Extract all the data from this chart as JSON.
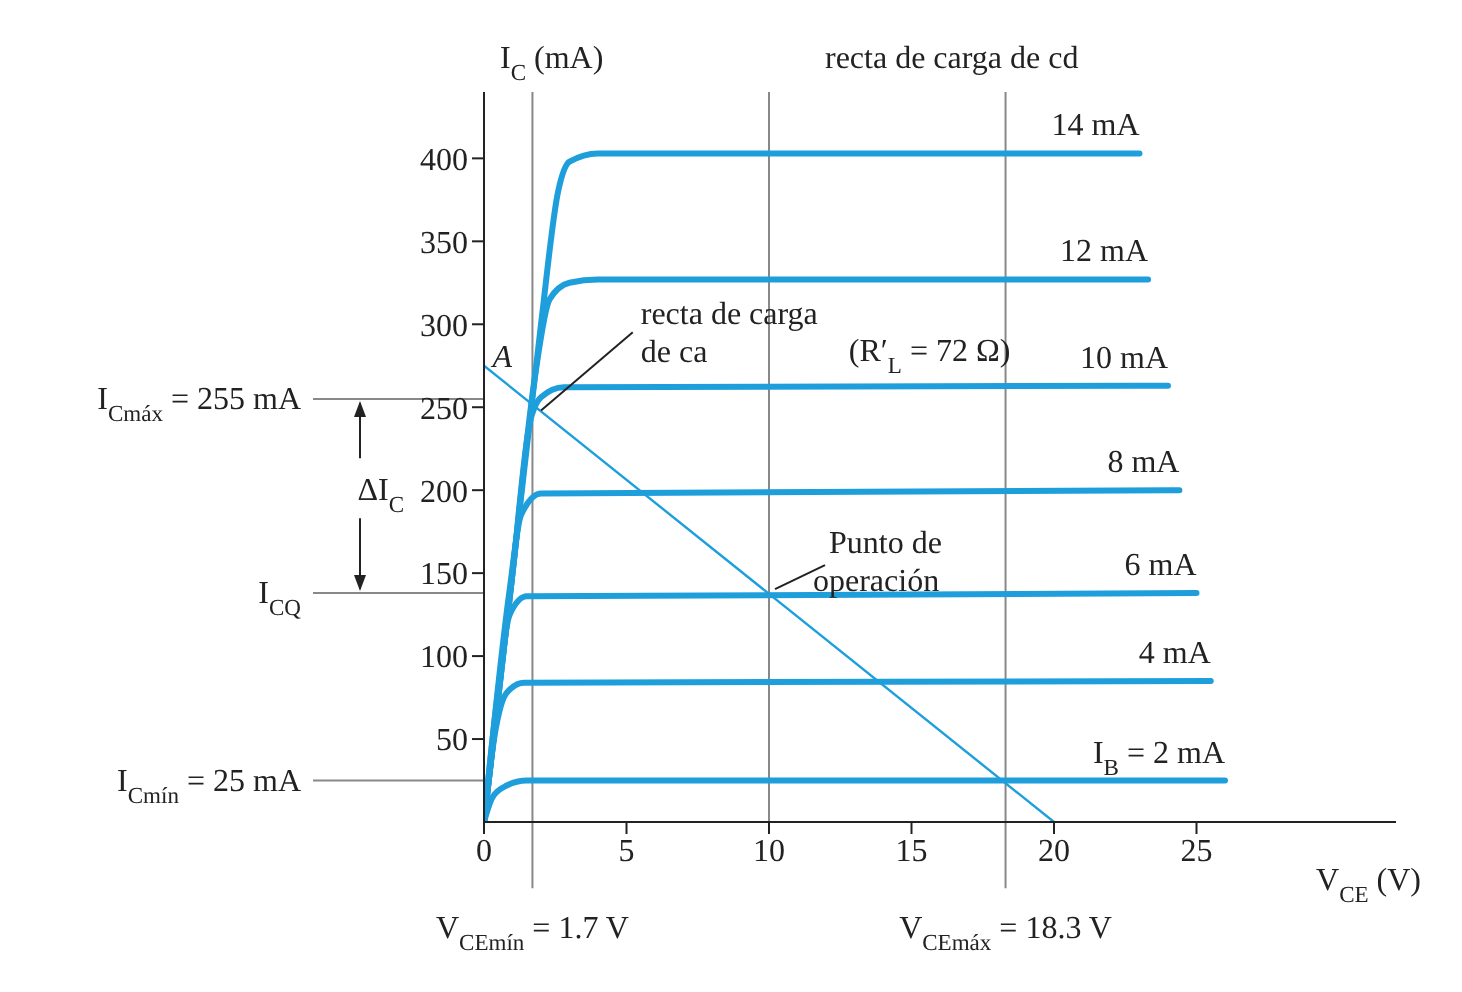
{
  "chart_data": {
    "type": "line",
    "xlabel": "V$_{CE}$ (V)",
    "ylabel": "I$_{C}$ (mA)",
    "xlim": [
      0,
      32
    ],
    "ylim": [
      0,
      440
    ],
    "xticks": [
      0,
      5,
      10,
      15,
      20,
      25
    ],
    "yticks": [
      50,
      100,
      150,
      200,
      250,
      300,
      350,
      400
    ],
    "marker": "none",
    "series": [
      {
        "name": "14 mA",
        "color": "#1e9fdc",
        "x": [
          0,
          1,
          2,
          2.6,
          3,
          4,
          23
        ],
        "values": [
          0,
          150,
          300,
          380,
          398,
          403,
          403
        ]
      },
      {
        "name": "12 mA",
        "color": "#1e9fdc",
        "x": [
          0,
          1,
          1.8,
          2.3,
          3,
          4,
          23.3
        ],
        "values": [
          0,
          150,
          270,
          315,
          325,
          327,
          327
        ]
      },
      {
        "name": "10 mA",
        "color": "#1e9fdc",
        "x": [
          0,
          1,
          1.6,
          2,
          2.8,
          24
        ],
        "values": [
          0,
          150,
          240,
          256,
          262,
          263
        ]
      },
      {
        "name": "8 mA",
        "color": "#1e9fdc",
        "x": [
          0,
          0.9,
          1.3,
          2,
          24.4
        ],
        "values": [
          0,
          140,
          185,
          198,
          200
        ]
      },
      {
        "name": "6 mA",
        "color": "#1e9fdc",
        "x": [
          0,
          0.5,
          0.9,
          1.5,
          25
        ],
        "values": [
          0,
          80,
          125,
          136,
          138
        ]
      },
      {
        "name": "4 mA",
        "color": "#1e9fdc",
        "x": [
          0,
          0.4,
          0.8,
          1.4,
          25.5
        ],
        "values": [
          0,
          55,
          78,
          84,
          85
        ]
      },
      {
        "name": "I$_{B}$ = 2 mA",
        "color": "#1e9fdc",
        "x": [
          0,
          0.3,
          0.8,
          1.5,
          26
        ],
        "values": [
          0,
          15,
          22,
          25,
          25
        ]
      },
      {
        "color": "#1e9fdc",
        "x": [
          0,
          20
        ],
        "values": [
          275,
          0
        ]
      }
    ],
    "ref_lines": [
      {
        "axis": "y",
        "value": 255,
        "label": "I$_{Cmáx}$ = 255 mA",
        "color": "#888888"
      },
      {
        "axis": "y",
        "value": 138,
        "label": "I$_{CQ}$",
        "color": "#888888"
      },
      {
        "axis": "y",
        "value": 25,
        "label": "I$_{Cmín}$ = 25 mA",
        "color": "#888888"
      },
      {
        "axis": "x",
        "value": 1.7,
        "label": "V$_{CEmín}$ = 1.7 V",
        "color": "#888888"
      },
      {
        "axis": "x",
        "value": 18.3,
        "label": "V$_{CEmáx}$ = 18.3 V",
        "color": "#888888"
      },
      {
        "axis": "x",
        "value": 10,
        "label": "recta de carga de cd",
        "color": "#888888"
      }
    ],
    "annotations": [
      {
        "text": "A",
        "x": 1.7,
        "y": 255
      },
      {
        "text": "recta de carga de ca",
        "x": 2,
        "y": 248
      },
      "(R′$_{L}$ = 72 Ω)",
      {
        "text": "Punto de operación",
        "x": 10,
        "y": 138
      },
      "ΔI$_{C}$"
    ]
  }
}
